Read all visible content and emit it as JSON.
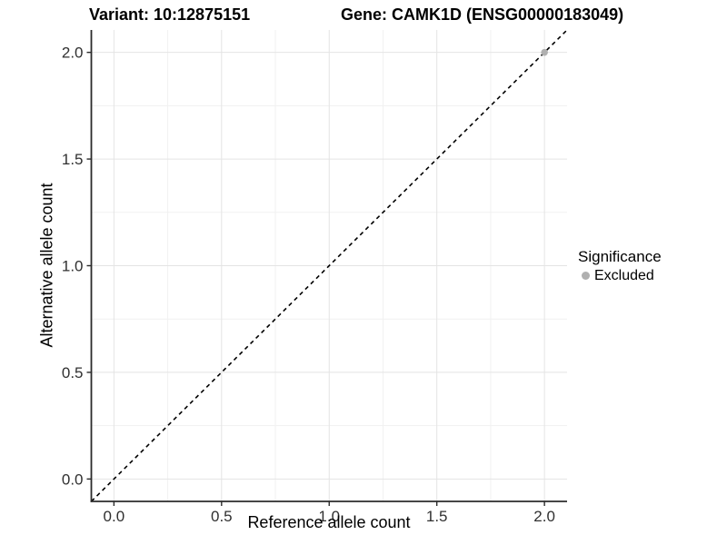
{
  "chart_data": {
    "type": "scatter",
    "title_left": "Variant: 10:12875151",
    "title_right": "Gene: CAMK1D (ENSG00000183049)",
    "xlabel": "Reference allele count",
    "ylabel": "Alternative allele count",
    "xlim": [
      -0.105,
      2.105
    ],
    "ylim": [
      -0.105,
      2.105
    ],
    "x_ticks": [
      0.0,
      0.5,
      1.0,
      1.5,
      2.0
    ],
    "y_ticks": [
      0.0,
      0.5,
      1.0,
      1.5,
      2.0
    ],
    "x_minor_ticks": [
      0.25,
      0.75,
      1.25,
      1.75
    ],
    "y_minor_ticks": [
      0.25,
      0.75,
      1.25,
      1.75
    ],
    "grid": true,
    "reference_line": {
      "type": "identity-abline",
      "slope": 1,
      "intercept": 0,
      "style": "dashed",
      "color": "#000000"
    },
    "series": [
      {
        "name": "Excluded",
        "color": "#b0b0b0",
        "points": [
          {
            "x": 2.0,
            "y": 2.0
          }
        ]
      }
    ],
    "legend": {
      "title": "Significance",
      "position": "right",
      "entries": [
        {
          "label": "Excluded",
          "color": "#b0b0b0"
        }
      ]
    }
  },
  "colors": {
    "background": "#ffffff",
    "grid_major": "#e4e4e4",
    "grid_minor": "#f1f1f1",
    "axis_line": "#2b2b2b",
    "tick_mark": "#2b2b2b",
    "tick_label": "#303030",
    "excluded_point": "#b0b0b0",
    "dashed_line": "#000000"
  }
}
